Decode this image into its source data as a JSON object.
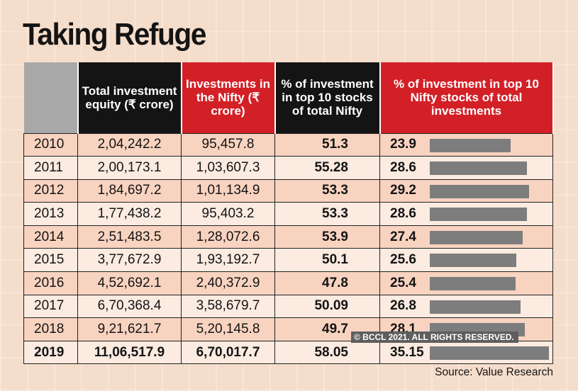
{
  "title": "Taking Refuge",
  "headers": {
    "year": "",
    "total": "Total investment equity (₹ crore)",
    "nifty": "Investments in the Nifty (₹ crore)",
    "pct_top10": "% of investment in top 10 stocks of total Nifty",
    "pct_total": "% of investment in top 10 Nifty stocks of total investments"
  },
  "chart_data": {
    "type": "table",
    "title": "Taking Refuge",
    "columns": [
      "",
      "Total investment equity (₹ crore)",
      "Investments in the Nifty (₹ crore)",
      "% of investment in top 10 stocks of total Nifty",
      "% of investment in top 10 Nifty stocks of total investments"
    ],
    "rows": [
      {
        "year": "2010",
        "total": "2,04,242.2",
        "nifty": "95,457.8",
        "pct_top10": "51.3",
        "pct_total": "23.9",
        "pct_total_value": 23.9
      },
      {
        "year": "2011",
        "total": "2,00,173.1",
        "nifty": "1,03,607.3",
        "pct_top10": "55.28",
        "pct_total": "28.6",
        "pct_total_value": 28.6
      },
      {
        "year": "2012",
        "total": "1,84,697.2",
        "nifty": "1,01,134.9",
        "pct_top10": "53.3",
        "pct_total": "29.2",
        "pct_total_value": 29.2
      },
      {
        "year": "2013",
        "total": "1,77,438.2",
        "nifty": "95,403.2",
        "pct_top10": "53.3",
        "pct_total": "28.6",
        "pct_total_value": 28.6
      },
      {
        "year": "2014",
        "total": "2,51,483.5",
        "nifty": "1,28,072.6",
        "pct_top10": "53.9",
        "pct_total": "27.4",
        "pct_total_value": 27.4
      },
      {
        "year": "2015",
        "total": "3,77,672.9",
        "nifty": "1,93,192.7",
        "pct_top10": "50.1",
        "pct_total": "25.6",
        "pct_total_value": 25.6
      },
      {
        "year": "2016",
        "total": "4,52,692.1",
        "nifty": "2,40,372.9",
        "pct_top10": "47.8",
        "pct_total": "25.4",
        "pct_total_value": 25.4
      },
      {
        "year": "2017",
        "total": "6,70,368.4",
        "nifty": "3,58,679.7",
        "pct_top10": "50.09",
        "pct_total": "26.8",
        "pct_total_value": 26.8
      },
      {
        "year": "2018",
        "total": "9,21,621.7",
        "nifty": "5,20,145.8",
        "pct_top10": "49.7",
        "pct_total": "28.1",
        "pct_total_value": 28.1
      },
      {
        "year": "2019",
        "total": "11,06,517.9",
        "nifty": "6,70,017.7",
        "pct_top10": "58.05",
        "pct_total": "35.15",
        "pct_total_value": 35.15
      }
    ]
  },
  "copyright": "© BCCL 2021. ALL RIGHTS RESERVED.",
  "source": "Source: Value Research",
  "colors": {
    "header_black": "#141414",
    "header_red": "#d32027",
    "header_grey": "#a8a8a8",
    "bar": "#7d7d7d",
    "row_odd": "#f8d3c0",
    "row_even": "#fbebe1"
  }
}
